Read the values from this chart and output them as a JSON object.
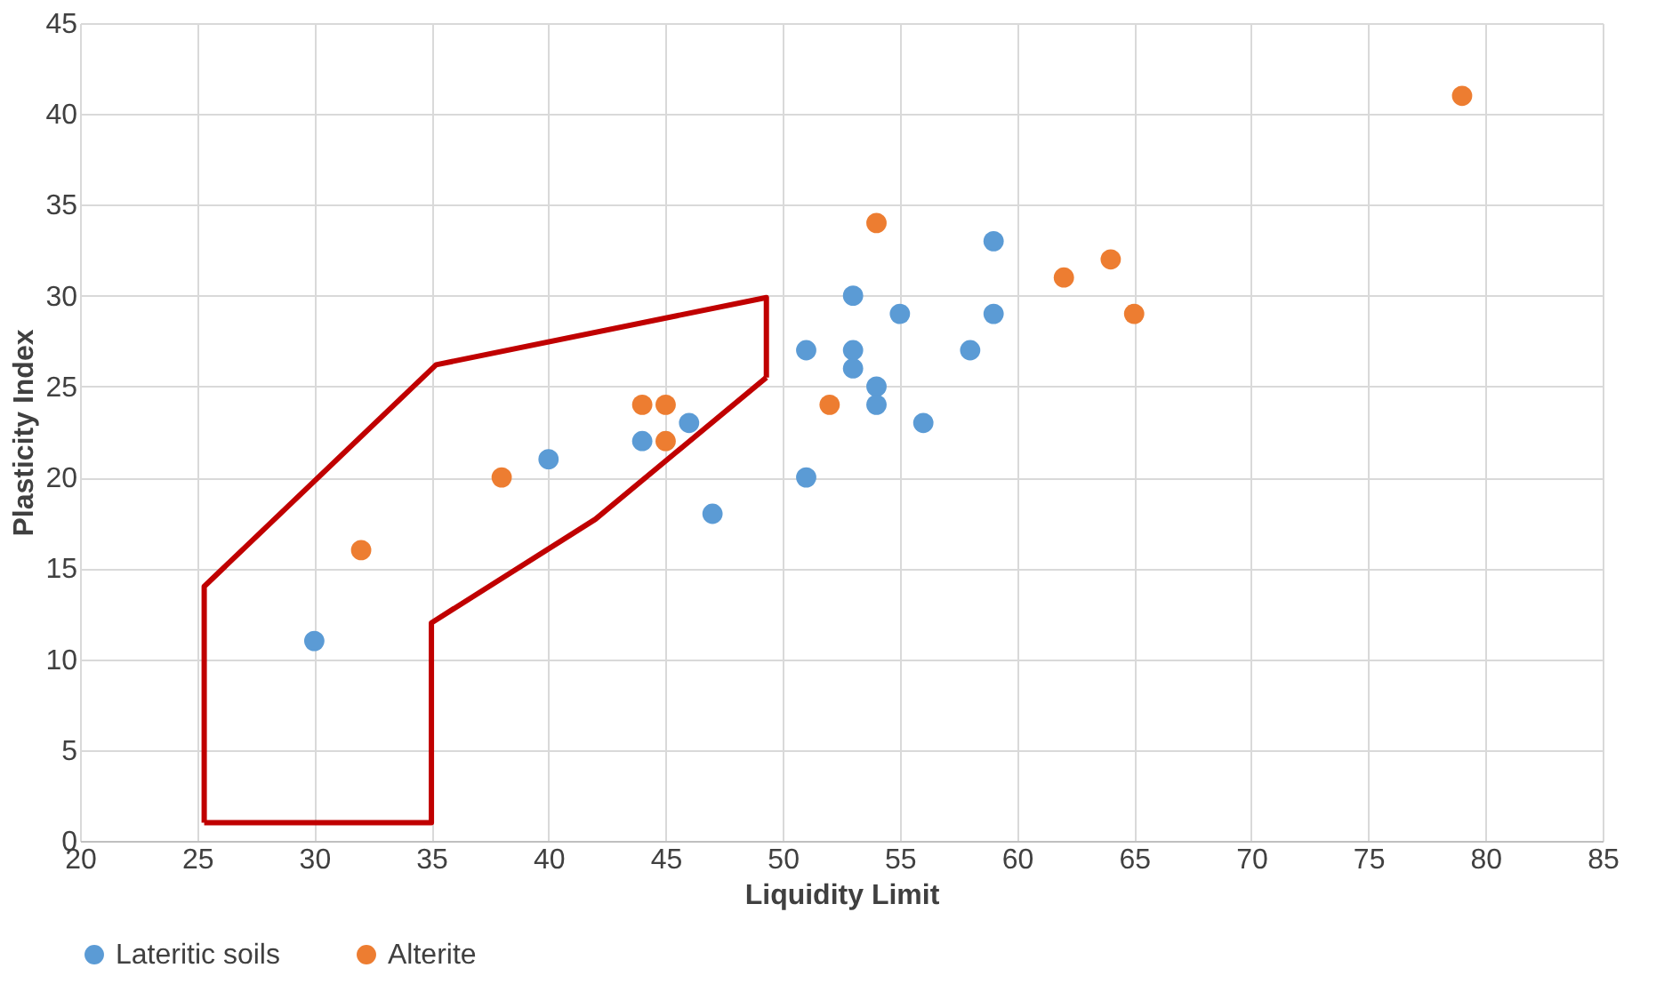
{
  "chart_data": {
    "type": "scatter",
    "xlabel": "Liquidity Limit",
    "ylabel": "Plasticity Index",
    "xlim": [
      20,
      85
    ],
    "xticks": [
      20,
      25,
      30,
      35,
      40,
      45,
      50,
      55,
      60,
      65,
      70,
      75,
      80,
      85
    ],
    "ylim": [
      0,
      45
    ],
    "yticks": [
      0,
      5,
      10,
      15,
      20,
      25,
      30,
      35,
      40,
      45
    ],
    "grid": true,
    "legend": "bottom",
    "marker": "circle",
    "series": [
      {
        "name": "Lateritic soils",
        "color": "#5b9bd5",
        "x": [
          30,
          40,
          44,
          46,
          47,
          51,
          51,
          53,
          53,
          53,
          54,
          54,
          55,
          56,
          58,
          59,
          59
        ],
        "values": [
          11,
          21,
          22,
          23,
          18,
          27,
          20,
          30,
          27,
          26,
          25,
          24,
          29,
          23,
          27,
          33,
          29
        ]
      },
      {
        "name": "Alterite",
        "color": "#ed7d31",
        "x": [
          32,
          38,
          44,
          45,
          45,
          52,
          54,
          62,
          64,
          65,
          79
        ],
        "values": [
          16,
          20,
          24,
          24,
          22,
          24,
          34,
          31,
          32,
          29,
          41
        ]
      },
      {
        "type": "line",
        "color": "#c00000",
        "line_style": "solid",
        "marker": "none",
        "x": [
          25.3,
          25.3,
          35.2,
          49.3,
          49.3
        ],
        "values": [
          1,
          14,
          26.2,
          29.9,
          25.5
        ]
      },
      {
        "type": "line",
        "color": "#c00000",
        "line_style": "solid",
        "marker": "none",
        "x": [
          25.3,
          35,
          35,
          42,
          49.3
        ],
        "values": [
          1,
          1,
          12,
          17.7,
          25.5
        ]
      }
    ]
  }
}
